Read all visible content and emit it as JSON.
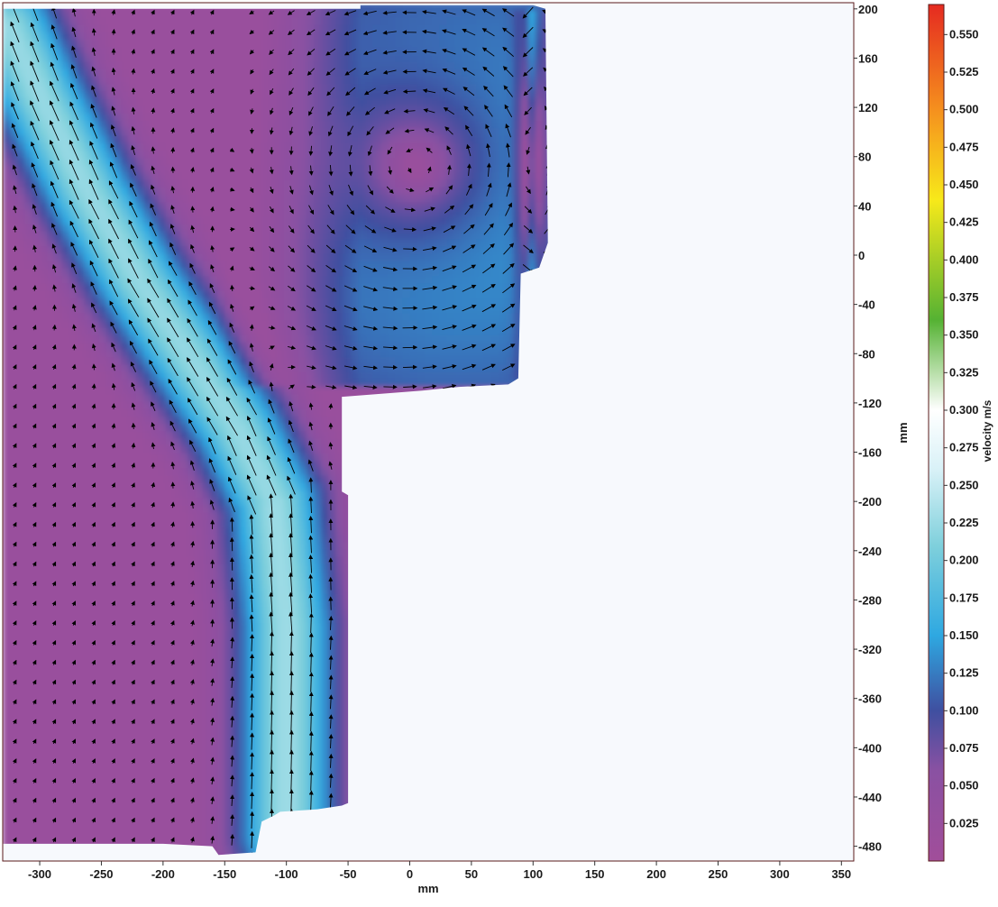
{
  "chart_data": {
    "type": "heatmap",
    "subtype": "velocity-vector-field",
    "title": "",
    "xlabel": "mm",
    "ylabel": "mm",
    "xlim": [
      -330,
      360
    ],
    "ylim": [
      -492,
      205
    ],
    "x_ticks": [
      -300,
      -250,
      -200,
      -150,
      -100,
      -50,
      0,
      50,
      100,
      150,
      200,
      250,
      300,
      350
    ],
    "y_ticks": [
      200,
      160,
      120,
      80,
      40,
      0,
      -40,
      -80,
      -120,
      -160,
      -200,
      -240,
      -280,
      -320,
      -360,
      -400,
      -440,
      -480
    ],
    "y_axis_position": "right",
    "grid": false,
    "background_color": "#f7f9fd",
    "flow_domain_polygon": [
      [
        -330,
        200
      ],
      [
        -40,
        200
      ],
      [
        -40,
        203
      ],
      [
        100,
        203
      ],
      [
        110,
        200
      ],
      [
        112,
        10
      ],
      [
        105,
        -10
      ],
      [
        90,
        -15
      ],
      [
        88,
        -100
      ],
      [
        80,
        -105
      ],
      [
        40,
        -107
      ],
      [
        10,
        -110
      ],
      [
        -55,
        -115
      ],
      [
        -55,
        -192
      ],
      [
        -50,
        -195
      ],
      [
        -50,
        -445
      ],
      [
        -55,
        -447
      ],
      [
        -75,
        -450
      ],
      [
        -105,
        -452
      ],
      [
        -110,
        -455
      ],
      [
        -120,
        -460
      ],
      [
        -125,
        -485
      ],
      [
        -155,
        -487
      ],
      [
        -160,
        -480
      ],
      [
        -200,
        -478
      ],
      [
        -330,
        -478
      ]
    ],
    "jet_centerline": [
      [
        -100,
        -470
      ],
      [
        -100,
        -300
      ],
      [
        -110,
        -200
      ],
      [
        -140,
        -140
      ],
      [
        -180,
        -80
      ],
      [
        -220,
        -20
      ],
      [
        -260,
        50
      ],
      [
        -300,
        130
      ],
      [
        -325,
        185
      ]
    ],
    "jet_peak_speed": 0.215,
    "recirculation_vortex": {
      "center": [
        10,
        70
      ],
      "strength": 0.12
    },
    "right_wall_downflow": {
      "x": 100,
      "y_range": [
        -100,
        200
      ],
      "speed": 0.2
    },
    "background_speed": 0.02,
    "colorbar": {
      "label": "velocity m/s",
      "min": 0.0,
      "max": 0.57,
      "ticks": [
        0.025,
        0.05,
        0.075,
        0.1,
        0.125,
        0.15,
        0.175,
        0.2,
        0.225,
        0.25,
        0.275,
        0.3,
        0.325,
        0.35,
        0.375,
        0.4,
        0.425,
        0.45,
        0.475,
        0.5,
        0.525,
        0.55
      ],
      "tick_labels": [
        "0.025",
        "0.050",
        "0.075",
        "0.100",
        "0.125",
        "0.150",
        "0.175",
        "0.200",
        "0.225",
        "0.250",
        "0.275",
        "0.300",
        "0.325",
        "0.350",
        "0.375",
        "0.400",
        "0.425",
        "0.450",
        "0.475",
        "0.500",
        "0.525",
        "0.550"
      ],
      "colors": [
        [
          0.0,
          "#a14e9a"
        ],
        [
          0.06,
          "#8a51a2"
        ],
        [
          0.1,
          "#3f4fa0"
        ],
        [
          0.15,
          "#2ea8e1"
        ],
        [
          0.21,
          "#7fd0dc"
        ],
        [
          0.26,
          "#d8f1f7"
        ],
        [
          0.3,
          "#ffffff"
        ],
        [
          0.36,
          "#55b233"
        ],
        [
          0.44,
          "#f7e91a"
        ],
        [
          0.5,
          "#f5901e"
        ],
        [
          0.57,
          "#e52a20"
        ]
      ]
    },
    "vector_grid": {
      "dx": 16,
      "dy": 16,
      "color": "#000000"
    }
  }
}
